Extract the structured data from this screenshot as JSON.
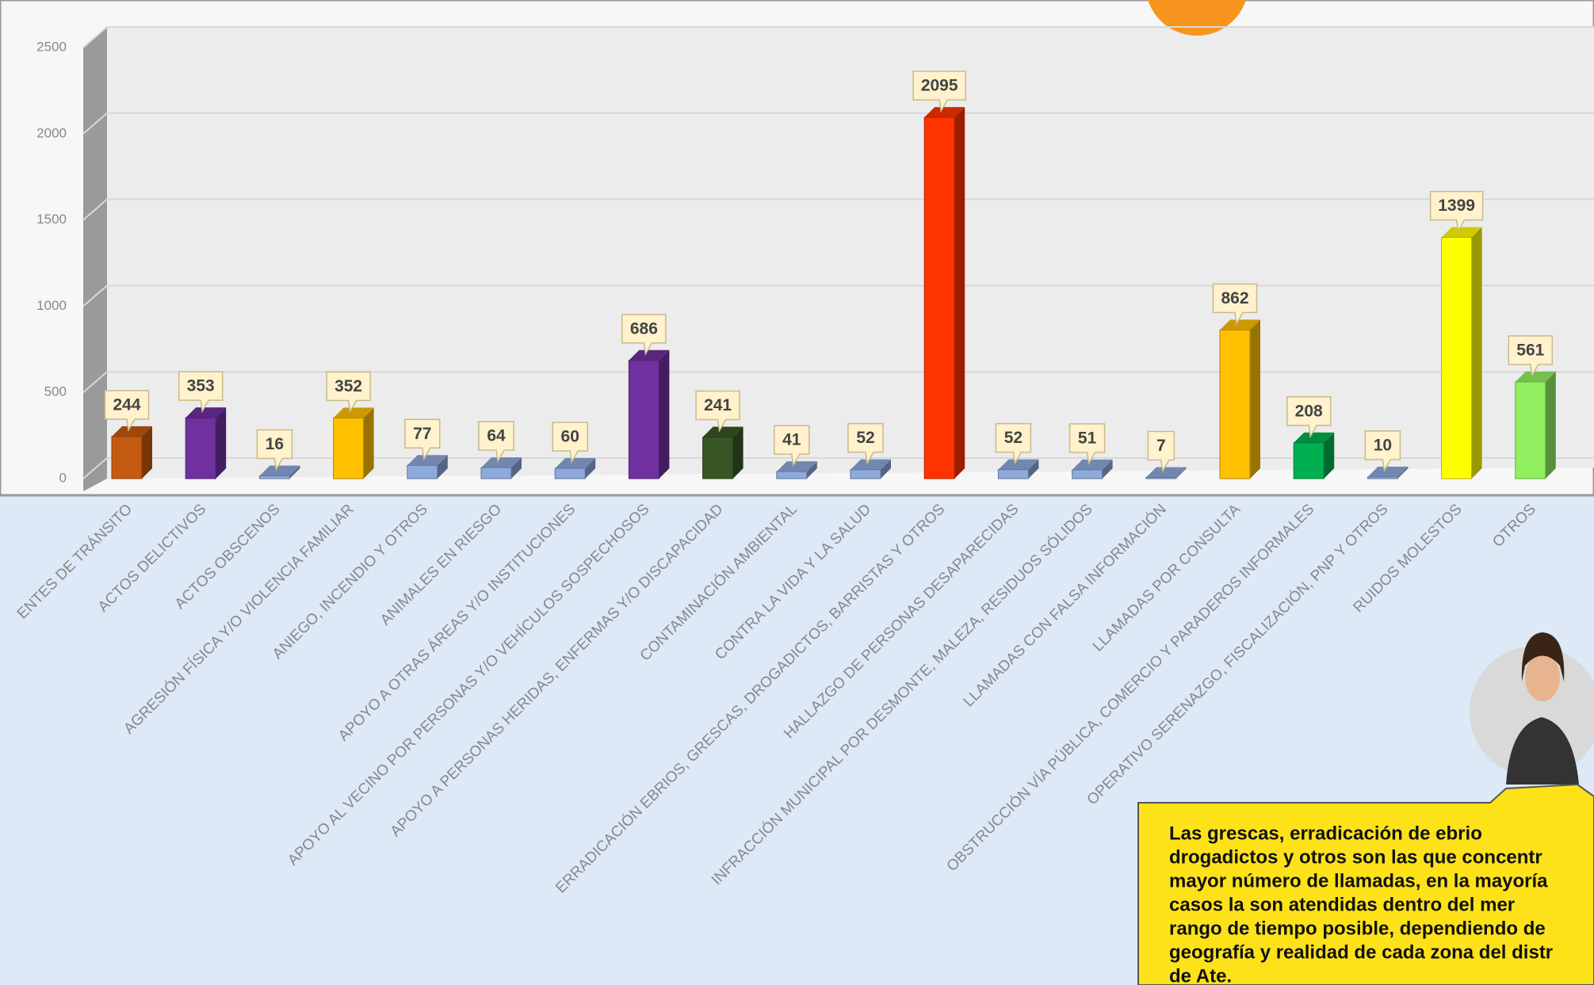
{
  "chart_data": {
    "type": "bar",
    "categories": [
      "ENTES DE TRÁNSITO",
      "ACTOS DELICTIVOS",
      "ACTOS OBSCENOS",
      "AGRESIÓN FÍSICA Y/O VIOLENCIA FAMILIAR",
      "ANIEGO, INCENDIO Y OTROS",
      "ANIMALES EN RIESGO",
      "APOYO A OTRAS ÁREAS Y/O INSTITUCIONES",
      "APOYO AL VECINO POR PERSONAS Y/O VEHÍCULOS SOSPECHOSOS",
      "APOYO A PERSONAS HERIDAS, ENFERMAS Y/O DISCAPACIDAD",
      "CONTAMINACIÓN AMBIENTAL",
      "CONTRA  LA VIDA Y LA SALUD",
      "ERRADICACIÓN EBRIOS, GRESCAS, DROGADICTOS, BARRISTAS Y OTROS",
      "HALLAZGO DE PERSONAS DESAPARECIDAS",
      "INFRACCIÓN MUNICIPAL POR DESMONTE, MALEZA, RESIDUOS SÓLIDOS",
      "LLAMADAS CON FALSA INFORMACIÓN",
      "LLAMADAS POR CONSULTA",
      "OBSTRUCCIÓN VÍA PÚBLICA, COMERCIO Y PARADEROS INFORMALES",
      "OPERATIVO SERENAZGO, FISCALIZACIÓN, PNP Y OTROS",
      "RUIDOS MOLESTOS",
      "OTROS"
    ],
    "values": [
      244,
      353,
      16,
      352,
      77,
      64,
      60,
      686,
      241,
      41,
      52,
      2095,
      52,
      51,
      7,
      862,
      208,
      10,
      1399,
      561
    ],
    "colors": [
      "#c55a11",
      "#7030a0",
      "#8ea9db",
      "#ffc000",
      "#8ea9db",
      "#8ea9db",
      "#8ea9db",
      "#7030a0",
      "#375623",
      "#8ea9db",
      "#8ea9db",
      "#ff3300",
      "#8ea9db",
      "#8ea9db",
      "#8ea9db",
      "#ffc000",
      "#00b050",
      "#8ea9db",
      "#ffff00",
      "#92f060"
    ],
    "ylim": [
      0,
      2500
    ],
    "yticks": [
      0,
      500,
      1000,
      1500,
      2000,
      2500
    ],
    "grid": true
  },
  "note": {
    "lines": [
      "Las grescas, erradicación de ebrio",
      "drogadictos y otros son las que concentr",
      "mayor número de llamadas, en la mayoría",
      "casos la son atendidas dentro del mer",
      "rango de tiempo posible, dependiendo de",
      "geografía y realidad de cada zona del distr",
      "de Ate."
    ]
  }
}
